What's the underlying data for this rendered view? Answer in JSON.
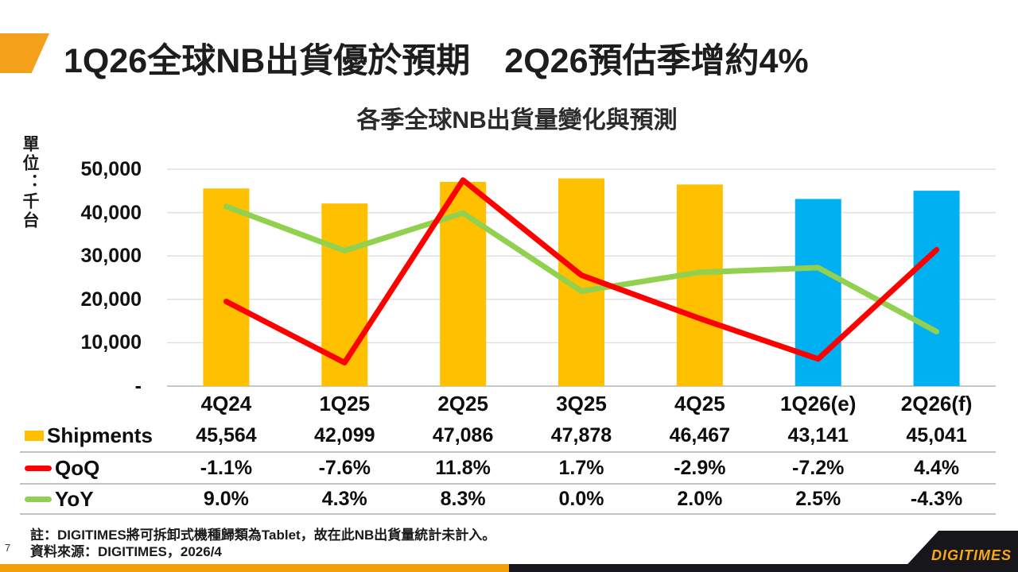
{
  "slide": {
    "title": "1Q26全球NB出貨優於預期　2Q26預估季增約4%",
    "page_number": "7",
    "note_line1": "註：DIGITIMES將可拆卸式機種歸類為Tablet，故在此NB出貨量統計未計入。",
    "note_line2": "資料來源：DIGITIMES，2026/4",
    "logo_text": "DIGITIMES"
  },
  "chart_data": {
    "type": "combo-bar-line",
    "title": "各季全球NB出貨量變化與預測",
    "unit_label": "單位：千台",
    "categories": [
      "4Q24",
      "1Q25",
      "2Q25",
      "3Q25",
      "4Q25",
      "1Q26(e)",
      "2Q26(f)"
    ],
    "series": [
      {
        "name": "Shipments",
        "type": "bar",
        "color": "#FFC000",
        "forecast_color": "#00B0F0",
        "values": [
          45564,
          42099,
          47086,
          47878,
          46467,
          43141,
          45041
        ],
        "values_display": [
          "45,564",
          "42,099",
          "47,086",
          "47,878",
          "46,467",
          "43,141",
          "45,041"
        ]
      },
      {
        "name": "QoQ",
        "type": "line",
        "color": "#FF0000",
        "values": [
          -1.1,
          -7.6,
          11.8,
          1.7,
          -2.9,
          -7.2,
          4.4
        ],
        "values_display": [
          "-1.1%",
          "-7.6%",
          "11.8%",
          "1.7%",
          "-2.9%",
          "-7.2%",
          "4.4%"
        ]
      },
      {
        "name": "YoY",
        "type": "line",
        "color": "#92D050",
        "values": [
          9.0,
          4.3,
          8.3,
          0.0,
          2.0,
          2.5,
          -4.3
        ],
        "values_display": [
          "9.0%",
          "4.3%",
          "8.3%",
          "0.0%",
          "2.0%",
          "2.5%",
          "-4.3%"
        ]
      }
    ],
    "y_ticks": [
      "50,000",
      "40,000",
      "30,000",
      "20,000",
      "10,000",
      "-"
    ],
    "ylim": [
      0,
      50000
    ],
    "forecast_from_index": 5,
    "grid": true,
    "legend_position": "table-left"
  }
}
